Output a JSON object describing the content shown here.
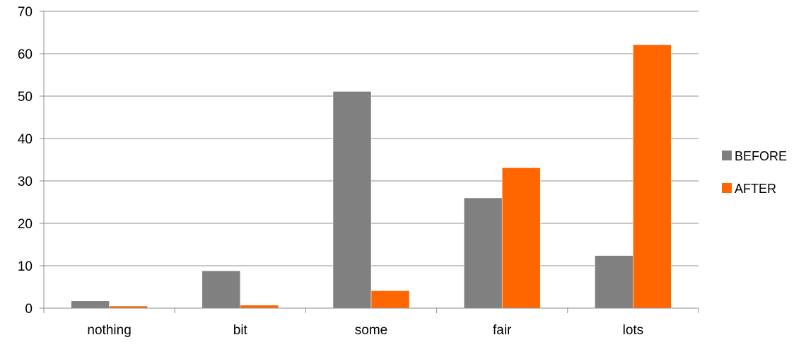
{
  "chart_data": {
    "type": "bar",
    "categories": [
      "nothing",
      "bit",
      "some",
      "fair",
      "lots"
    ],
    "series": [
      {
        "name": "BEFORE",
        "values": [
          1.7,
          8.8,
          51.1,
          26.0,
          12.4
        ],
        "color": "#808080"
      },
      {
        "name": "AFTER",
        "values": [
          0.5,
          0.7,
          4.1,
          33.1,
          62.1
        ],
        "color": "#FF6600"
      }
    ],
    "yticks": [
      "0",
      "10",
      "20",
      "30",
      "40",
      "50",
      "60",
      "70"
    ],
    "ylim": [
      0,
      70
    ],
    "grid": true,
    "legend": "right"
  }
}
